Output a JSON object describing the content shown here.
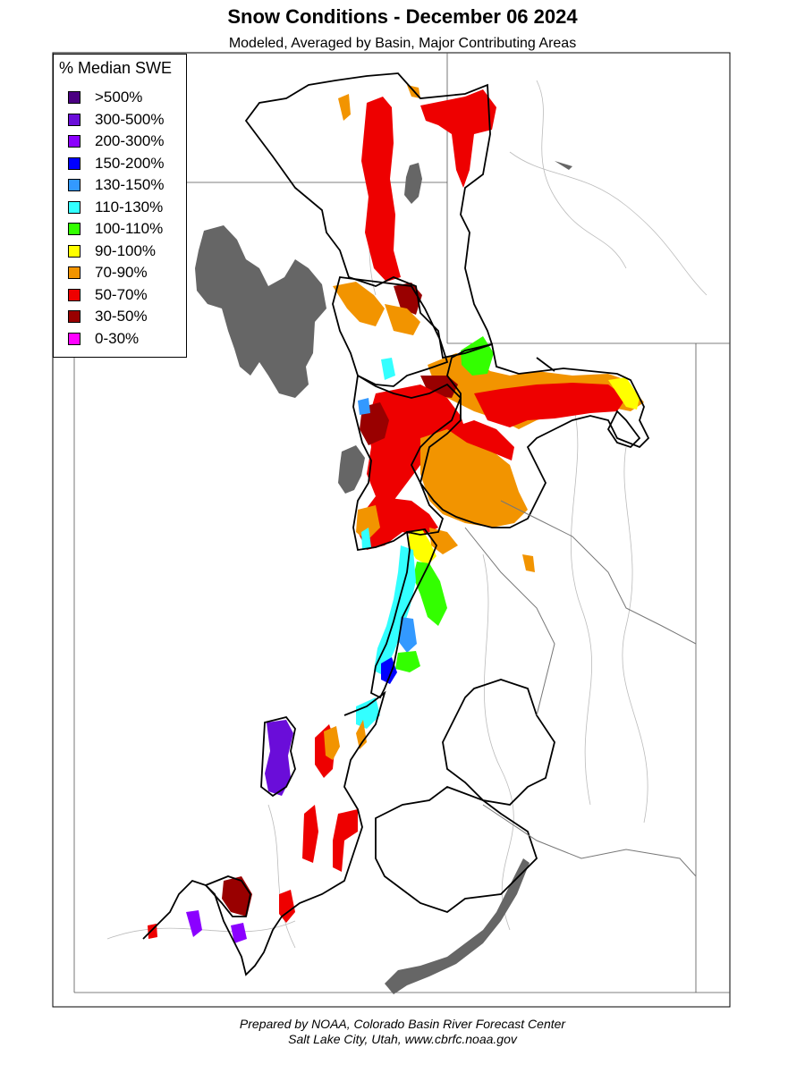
{
  "title": "Snow Conditions - December 06 2024",
  "subtitle": "Modeled, Averaged by Basin, Major Contributing Areas",
  "legend": {
    "title": "% Median SWE",
    "items": [
      {
        "label": ">500%",
        "color": "#4b0082"
      },
      {
        "label": "300-500%",
        "color": "#6a0dd9"
      },
      {
        "label": "200-300%",
        "color": "#8b00ff"
      },
      {
        "label": "150-200%",
        "color": "#0000ff"
      },
      {
        "label": "130-150%",
        "color": "#3399ff"
      },
      {
        "label": "110-130%",
        "color": "#33ffff"
      },
      {
        "label": "100-110%",
        "color": "#33ff00"
      },
      {
        "label": "90-100%",
        "color": "#ffff00"
      },
      {
        "label": "70-90%",
        "color": "#f29400"
      },
      {
        "label": "50-70%",
        "color": "#ee0000"
      },
      {
        "label": "30-50%",
        "color": "#990000"
      },
      {
        "label": "0-30%",
        "color": "#ff00ff"
      }
    ]
  },
  "footer": {
    "line1": "Prepared by NOAA, Colorado Basin River Forecast Center",
    "line2": "Salt Lake City, Utah, www.cbrfc.noaa.gov"
  }
}
